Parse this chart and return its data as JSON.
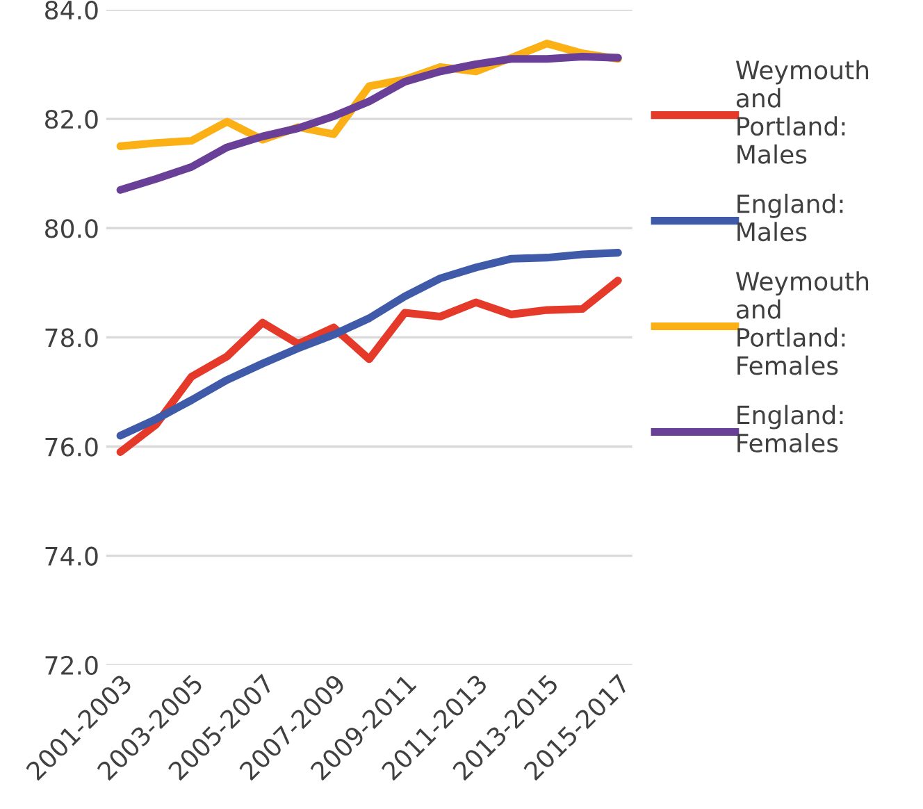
{
  "chart_data": {
    "type": "line",
    "categories": [
      "2001-2003",
      null,
      "2003-2005",
      null,
      "2005-2007",
      null,
      "2007-2009",
      null,
      "2009-2011",
      null,
      "2011-2013",
      null,
      "2013-2015",
      null,
      "2015-2017"
    ],
    "series": [
      {
        "name": "Weymouth and Portland: Males",
        "color": "#e5392a",
        "values": [
          75.9,
          76.4,
          77.28,
          77.65,
          78.27,
          77.88,
          78.18,
          77.6,
          78.45,
          78.38,
          78.64,
          78.42,
          78.5,
          78.52,
          79.04
        ]
      },
      {
        "name": "England: Males",
        "color": "#3e5aa9",
        "values": [
          76.2,
          76.5,
          76.85,
          77.22,
          77.52,
          77.8,
          78.05,
          78.35,
          78.75,
          79.08,
          79.28,
          79.44,
          79.46,
          79.52,
          79.55
        ]
      },
      {
        "name": "Weymouth and Portland: Females",
        "color": "#fbb116",
        "values": [
          81.5,
          81.56,
          81.6,
          81.95,
          81.62,
          81.85,
          81.72,
          82.6,
          82.72,
          82.95,
          82.87,
          83.12,
          83.38,
          83.2,
          83.1
        ]
      },
      {
        "name": "England: Females",
        "color": "#6a3f97",
        "values": [
          80.7,
          80.9,
          81.12,
          81.48,
          81.68,
          81.83,
          82.05,
          82.32,
          82.68,
          82.87,
          83.0,
          83.1,
          83.1,
          83.14,
          83.12
        ]
      }
    ],
    "ylim": [
      72,
      84
    ],
    "yticks": [
      {
        "value": 72,
        "label": "72.0"
      },
      {
        "value": 74,
        "label": "74.0"
      },
      {
        "value": 76,
        "label": "76.0"
      },
      {
        "value": 78,
        "label": "78.0"
      },
      {
        "value": 80,
        "label": "80.0"
      },
      {
        "value": 82,
        "label": "82.0"
      },
      {
        "value": 84,
        "label": "84.0"
      }
    ],
    "grid": "y",
    "legend": "right",
    "marker": "none",
    "line_style": "solid"
  }
}
